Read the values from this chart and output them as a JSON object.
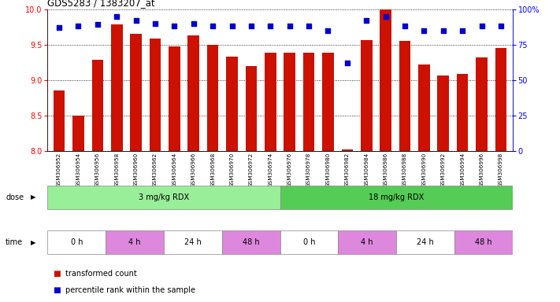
{
  "title": "GDS5283 / 1383207_at",
  "samples": [
    "GSM306952",
    "GSM306954",
    "GSM306956",
    "GSM306958",
    "GSM306960",
    "GSM306962",
    "GSM306964",
    "GSM306966",
    "GSM306968",
    "GSM306970",
    "GSM306972",
    "GSM306974",
    "GSM306976",
    "GSM306978",
    "GSM306980",
    "GSM306982",
    "GSM306984",
    "GSM306986",
    "GSM306988",
    "GSM306990",
    "GSM306992",
    "GSM306994",
    "GSM306996",
    "GSM306998"
  ],
  "bar_values": [
    8.85,
    8.5,
    9.28,
    9.78,
    9.65,
    9.58,
    9.47,
    9.63,
    9.5,
    9.33,
    9.2,
    9.38,
    9.38,
    9.38,
    9.38,
    8.02,
    9.56,
    9.99,
    9.55,
    9.22,
    9.06,
    9.09,
    9.32,
    9.45
  ],
  "percentile_values": [
    87,
    88,
    89,
    95,
    92,
    90,
    88,
    90,
    88,
    88,
    88,
    88,
    88,
    88,
    85,
    62,
    92,
    95,
    88,
    85,
    85,
    85,
    88,
    88
  ],
  "bar_color": "#cc1100",
  "dot_color": "#0000cc",
  "ylim_left": [
    8.0,
    10.0
  ],
  "ylim_right": [
    0,
    100
  ],
  "yticks_left": [
    8.0,
    8.5,
    9.0,
    9.5,
    10.0
  ],
  "yticks_right": [
    0,
    25,
    50,
    75,
    100
  ],
  "yticklabels_right": [
    "0",
    "25",
    "50",
    "75",
    "100%"
  ],
  "background_color": "#ffffff",
  "dose_groups": [
    {
      "label": "3 mg/kg RDX",
      "start": 0,
      "end": 11,
      "color": "#99ee99"
    },
    {
      "label": "18 mg/kg RDX",
      "start": 12,
      "end": 23,
      "color": "#55cc55"
    }
  ],
  "time_groups": [
    {
      "label": "0 h",
      "start": 0,
      "end": 2,
      "color": "#ffffff"
    },
    {
      "label": "4 h",
      "start": 3,
      "end": 5,
      "color": "#dd88dd"
    },
    {
      "label": "24 h",
      "start": 6,
      "end": 8,
      "color": "#ffffff"
    },
    {
      "label": "48 h",
      "start": 9,
      "end": 11,
      "color": "#dd88dd"
    },
    {
      "label": "0 h",
      "start": 12,
      "end": 14,
      "color": "#ffffff"
    },
    {
      "label": "4 h",
      "start": 15,
      "end": 17,
      "color": "#dd88dd"
    },
    {
      "label": "24 h",
      "start": 18,
      "end": 20,
      "color": "#ffffff"
    },
    {
      "label": "48 h",
      "start": 21,
      "end": 23,
      "color": "#dd88dd"
    }
  ],
  "legend_items": [
    {
      "label": "transformed count",
      "color": "#cc1100"
    },
    {
      "label": "percentile rank within the sample",
      "color": "#0000cc"
    }
  ],
  "figsize": [
    7.11,
    3.84
  ],
  "dpi": 100
}
